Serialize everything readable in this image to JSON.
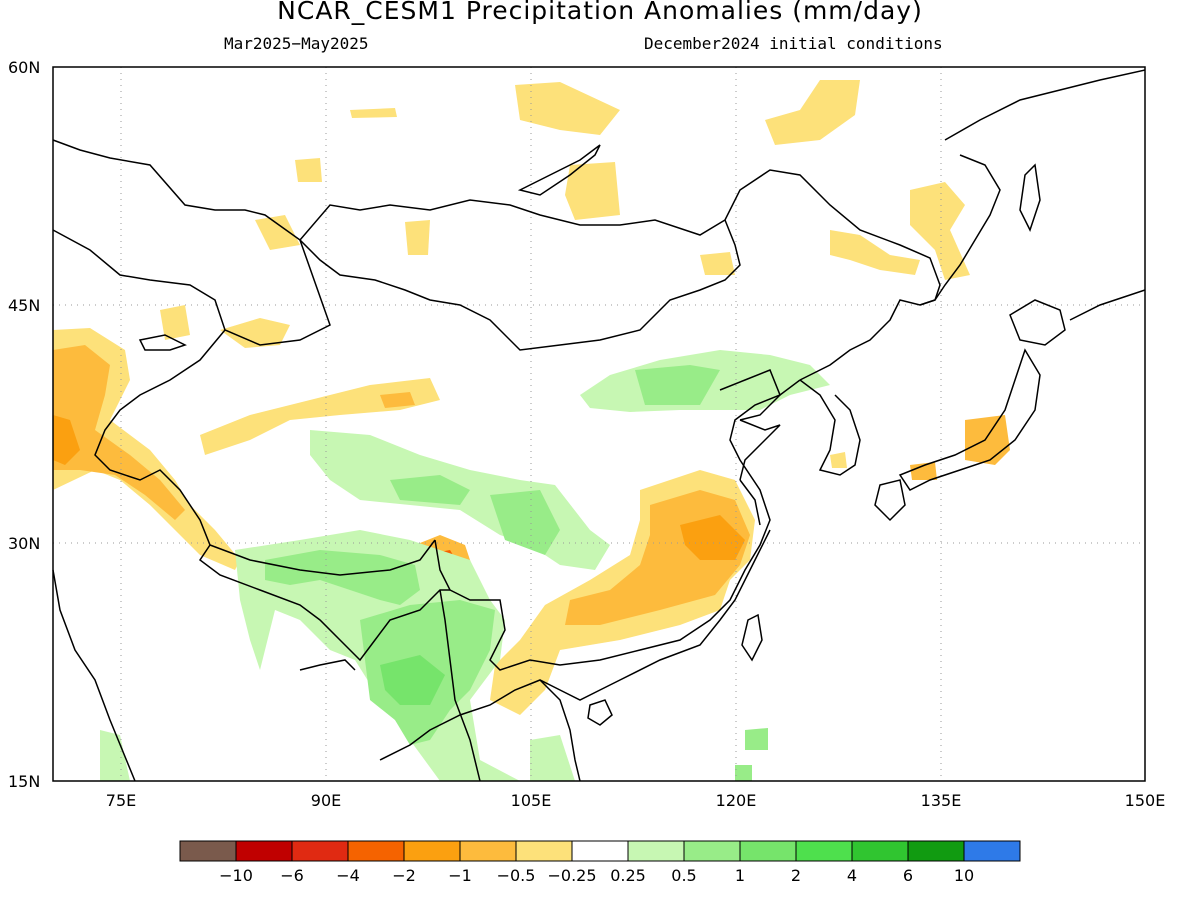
{
  "title": "NCAR_CESM1 Precipitation Anomalies (mm/day)",
  "subtitle_left": "Mar2025−May2025",
  "subtitle_right": "December2024 initial conditions",
  "lat_ticks": [
    "60N",
    "45N",
    "30N",
    "15N"
  ],
  "lon_ticks": [
    "75E",
    "90E",
    "105E",
    "120E",
    "135E",
    "150E"
  ],
  "colorbar": {
    "colors": [
      "#7a5a4c",
      "#c00000",
      "#e02a12",
      "#f56300",
      "#fba010",
      "#fdbb3d",
      "#fde17a",
      "#ffffff",
      "#c7f7b3",
      "#98ec88",
      "#76e46b",
      "#4ee04d",
      "#30c530",
      "#119b11",
      "#2e7ae8"
    ],
    "labels": [
      "−10",
      "−6",
      "−4",
      "−2",
      "−1",
      "−0.5",
      "−0.25",
      "0.25",
      "0.5",
      "1",
      "2",
      "4",
      "6",
      "10"
    ]
  },
  "palette": {
    "neg_light": "#fde17a",
    "neg_mid": "#fdbb3d",
    "neg_strong": "#fba010",
    "neg_stronger": "#f56300",
    "pos_light": "#c7f7b3",
    "pos_mid": "#98ec88",
    "pos_strong": "#76e46b"
  }
}
